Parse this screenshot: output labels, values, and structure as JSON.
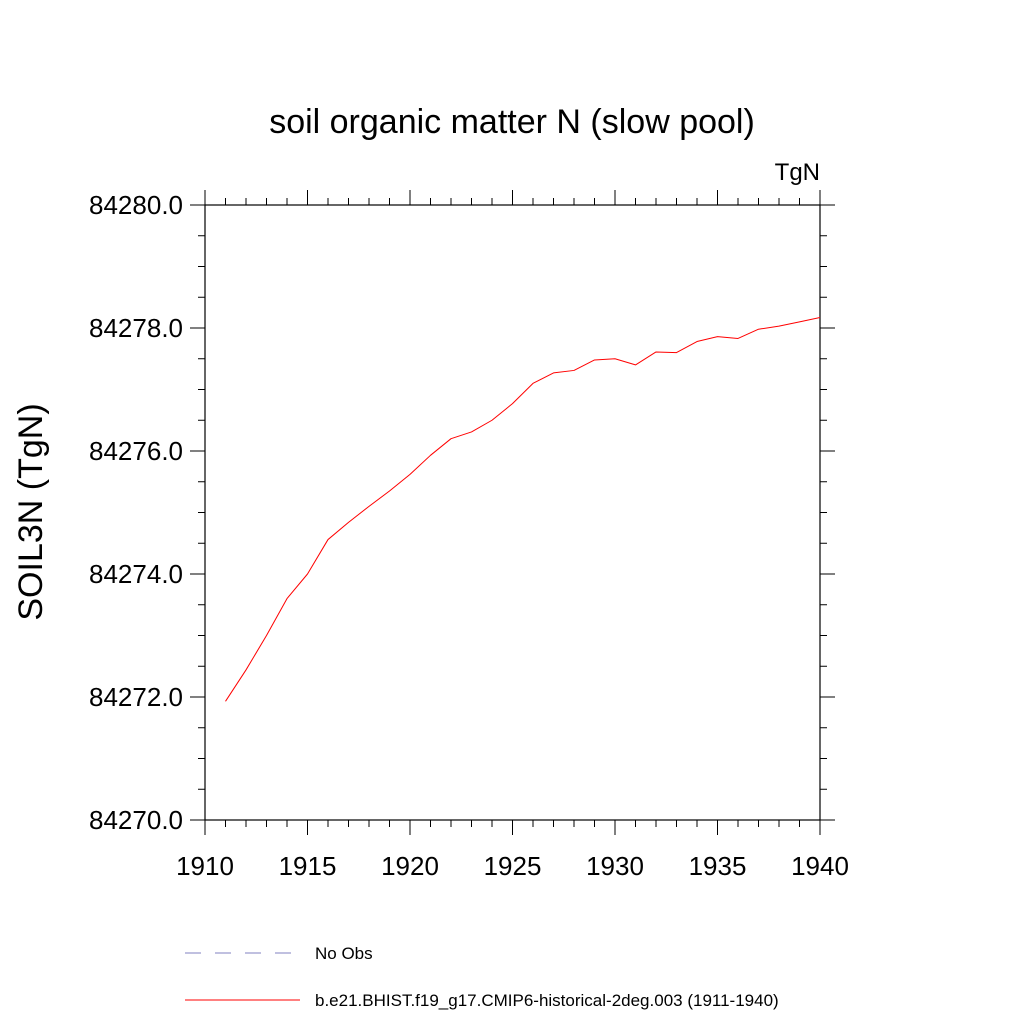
{
  "chart_data": {
    "type": "line",
    "title": "soil organic matter N (slow pool)",
    "units": "TgN",
    "ylabel": "SOIL3N  (TgN)",
    "xlabel": "",
    "xlim": [
      1910,
      1940
    ],
    "ylim": [
      84270.0,
      84280.0
    ],
    "x_ticks": [
      "1910",
      "1915",
      "1920",
      "1925",
      "1930",
      "1935",
      "1940"
    ],
    "y_ticks": [
      "84270.0",
      "84272.0",
      "84274.0",
      "84276.0",
      "84278.0",
      "84280.0"
    ],
    "grid": false,
    "x": [
      1911,
      1912,
      1913,
      1914,
      1915,
      1916,
      1917,
      1918,
      1919,
      1920,
      1921,
      1922,
      1923,
      1924,
      1925,
      1926,
      1927,
      1928,
      1929,
      1930,
      1931,
      1932,
      1933,
      1934,
      1935,
      1936,
      1937,
      1938,
      1939,
      1940
    ],
    "series": [
      {
        "name": "b.e21.BHIST.f19_g17.CMIP6-historical-2deg.003 (1911-1940)",
        "color": "#ff0000",
        "dash": "solid",
        "values": [
          84271.93,
          84272.44,
          84273.0,
          84273.6,
          84274.0,
          84274.56,
          84274.84,
          84275.1,
          84275.35,
          84275.62,
          84275.93,
          84276.2,
          84276.31,
          84276.5,
          84276.77,
          84277.1,
          84277.27,
          84277.31,
          84277.48,
          84277.5,
          84277.4,
          84277.61,
          84277.6,
          84277.78,
          84277.86,
          84277.83,
          84277.98,
          84278.03,
          84278.1,
          84278.17
        ]
      }
    ],
    "legend": {
      "placement": "bottom",
      "entries": [
        {
          "label": "No Obs",
          "color": "#8080c0",
          "dash": "dashed"
        },
        {
          "label": "b.e21.BHIST.f19_g17.CMIP6-historical-2deg.003 (1911-1940)",
          "color": "#ff0000",
          "dash": "solid"
        }
      ]
    }
  }
}
